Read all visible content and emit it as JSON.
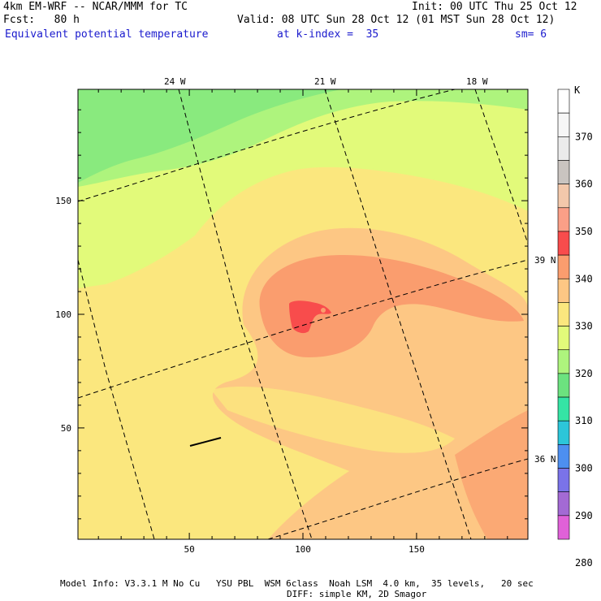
{
  "header": {
    "model_title": "4km EM-WRF -- NCAR/MMM for TC",
    "init": "Init: 00 UTC Thu 25 Oct 12",
    "fcst": "Fcst:   80 h",
    "valid": "Valid: 08 UTC Sun 28 Oct 12 (01 MST Sun 28 Oct 12)",
    "field": "Equivalent potential temperature",
    "level": "at k-index =  35",
    "smooth": "sm= 6"
  },
  "footer": {
    "line1": "Model Info: V3.3.1 M No Cu   YSU PBL  WSM 6class  Noah LSM  4.0 km,  35 levels,   20 sec",
    "line2": "DIFF: simple KM, 2D Smagor"
  },
  "map_labels": {
    "lon_24": "24 W",
    "lon_21": "21 W",
    "lon_18": "18 W",
    "lat_39": "39 N",
    "lat_36": "36 N"
  },
  "colorbar": {
    "unit": "K",
    "labels": [
      "370",
      "360",
      "350",
      "340",
      "330",
      "320",
      "310",
      "300",
      "290",
      "280"
    ],
    "colors": [
      "#ffffff",
      "#f6f6f6",
      "#ebebeb",
      "#c9c4c0",
      "#f3c8ab",
      "#fa9f87",
      "#f84c4c",
      "#fa9d6e",
      "#fdc784",
      "#fbe77e",
      "#e2fa7a",
      "#aef47d",
      "#6ce27f",
      "#35e4a5",
      "#2cc6d9",
      "#4d8ff0",
      "#7a73e8",
      "#a36ad4",
      "#e061d8"
    ]
  },
  "chart_data": {
    "type": "heatmap",
    "title": "Equivalent potential temperature",
    "unit": "K",
    "x_ticks": [
      50,
      100,
      150
    ],
    "y_ticks": [
      50,
      100,
      150
    ],
    "xlim": [
      1,
      199
    ],
    "ylim": [
      1,
      199
    ],
    "colorbar_levels": [
      370,
      360,
      350,
      340,
      330,
      320,
      310,
      300,
      290,
      280
    ],
    "color_scale": [
      {
        "min": 280,
        "max": 285,
        "color": "#e061d8"
      },
      {
        "min": 285,
        "max": 290,
        "color": "#a36ad4"
      },
      {
        "min": 290,
        "max": 295,
        "color": "#7a73e8"
      },
      {
        "min": 295,
        "max": 300,
        "color": "#4d8ff0"
      },
      {
        "min": 300,
        "max": 305,
        "color": "#2cc6d9"
      },
      {
        "min": 305,
        "max": 310,
        "color": "#35e4a5"
      },
      {
        "min": 310,
        "max": 315,
        "color": "#6ce27f"
      },
      {
        "min": 315,
        "max": 320,
        "color": "#aef47d"
      },
      {
        "min": 320,
        "max": 325,
        "color": "#e2fa7a"
      },
      {
        "min": 325,
        "max": 330,
        "color": "#fbe77e"
      },
      {
        "min": 330,
        "max": 335,
        "color": "#fdc784"
      },
      {
        "min": 335,
        "max": 340,
        "color": "#fa9d6e"
      },
      {
        "min": 340,
        "max": 345,
        "color": "#f84c4c"
      },
      {
        "min": 345,
        "max": 350,
        "color": "#fa9f87"
      },
      {
        "min": 350,
        "max": 355,
        "color": "#f3c8ab"
      },
      {
        "min": 355,
        "max": 360,
        "color": "#c9c4c0"
      },
      {
        "min": 360,
        "max": 365,
        "color": "#ebebeb"
      },
      {
        "min": 365,
        "max": 370,
        "color": "#f6f6f6"
      },
      {
        "min": 370,
        "max": 375,
        "color": "#ffffff"
      }
    ],
    "storm_center_grid": [
      97,
      102
    ],
    "storm_core_theta_e": 342,
    "wind_barb_grid": [
      [
        51,
        42
      ],
      [
        64,
        46
      ]
    ]
  }
}
